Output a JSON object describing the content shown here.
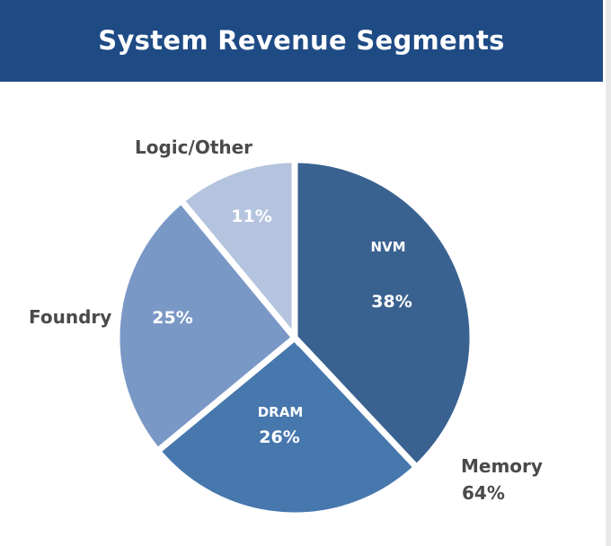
{
  "colors": {
    "header_bg": "#1f4b85",
    "nvm": "#3a6291",
    "dram": "#4677ad",
    "foundry": "#7a98c6",
    "logic": "#b4c3de"
  },
  "chart_data": {
    "type": "pie",
    "title": "System Revenue Segments",
    "slices": [
      {
        "name": "NVM",
        "value": 38,
        "label": "38%",
        "group": "Memory"
      },
      {
        "name": "DRAM",
        "value": 26,
        "label": "26%",
        "group": "Memory"
      },
      {
        "name": "Foundry",
        "value": 25,
        "label": "25%"
      },
      {
        "name": "Logic/Other",
        "value": 11,
        "label": "11%"
      }
    ],
    "group_label": {
      "name": "Memory",
      "value": "64%"
    }
  }
}
